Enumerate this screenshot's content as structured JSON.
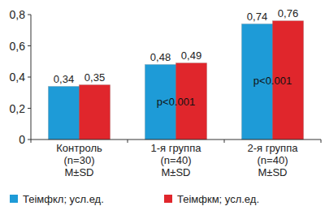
{
  "chart_data": {
    "type": "bar",
    "categories": [
      "Контроль\n(n=30)\nM±SD",
      "1-я группа\n(n=40)\nM±SD",
      "2-я группа\n(n=40)\nM±SD"
    ],
    "series": [
      {
        "name": "Теiмфкл; усл.ед.",
        "color": "#1e9bd7",
        "values": [
          0.34,
          0.48,
          0.74
        ],
        "value_labels": [
          "0,34",
          "0,48",
          "0,74"
        ]
      },
      {
        "name": "Теiмфкм; усл.ед.",
        "color": "#e0262c",
        "values": [
          0.35,
          0.49,
          0.76
        ],
        "value_labels": [
          "0,35",
          "0,49",
          "0,76"
        ]
      }
    ],
    "ylim": [
      0,
      0.8
    ],
    "yticks": [
      0,
      {
        "value": 0.2,
        "label": "0,2"
      },
      {
        "value": 0.4,
        "label": "0,4"
      },
      {
        "value": 0.6,
        "label": "0,6"
      },
      {
        "value": 0.8,
        "label": "0,8"
      }
    ],
    "grid": false,
    "data_labels": true,
    "legend": "bottom",
    "annotations": [
      {
        "text": "p<0.001",
        "category": 1
      },
      {
        "text": "p<0.001",
        "category": 2
      }
    ]
  }
}
